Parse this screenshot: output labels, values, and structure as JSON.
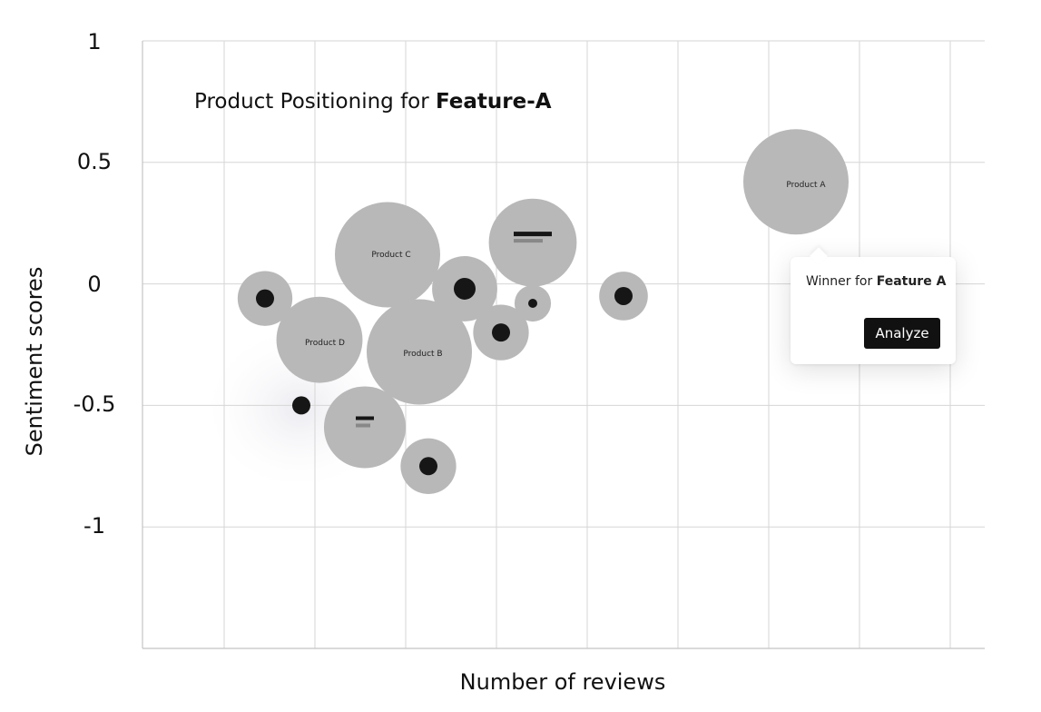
{
  "title": {
    "prefix": "Product Positioning for ",
    "emphasis": "Feature-A"
  },
  "tooltip": {
    "text_prefix": "Winner for ",
    "text_emphasis": "Feature A",
    "button_label": "Analyze"
  },
  "colors": {
    "bubble": "#b8b8b8",
    "dot": "#161616",
    "grid": "#d6d6d6",
    "axis": "#c4c4c4",
    "button": "#111111"
  },
  "chart_data": {
    "type": "scatter",
    "title": "Product Positioning for Feature-A",
    "xlabel": "Number of reviews",
    "ylabel": "Sentiment scores",
    "y_ticks": [
      "1",
      "0.5",
      "0",
      "-0.5",
      "-1"
    ],
    "ylim": [
      -1.5,
      1
    ],
    "grid": true,
    "x_tick_labels_shown": false,
    "series": [
      {
        "points": [
          {
            "label": "Product A",
            "x": 7.3,
            "y": 0.42,
            "size": 1.0
          },
          {
            "label": "Product C",
            "x": 2.8,
            "y": 0.12,
            "size": 1.0
          },
          {
            "label": "Product B",
            "x": 3.15,
            "y": -0.28,
            "size": 1.0
          },
          {
            "label": "Product D",
            "x": 2.05,
            "y": -0.23,
            "size": 0.78
          },
          {
            "label": "",
            "x": 4.4,
            "y": 0.17,
            "size": 0.8,
            "marker": "bars"
          },
          {
            "label": "",
            "x": 2.55,
            "y": -0.59,
            "size": 0.73,
            "marker": "bars"
          },
          {
            "label": "",
            "x": 3.65,
            "y": -0.02,
            "size": 0.54,
            "marker": "dot"
          },
          {
            "label": "",
            "x": 1.45,
            "y": -0.06,
            "size": 0.42,
            "marker": "dot"
          },
          {
            "label": "",
            "x": 4.05,
            "y": -0.2,
            "size": 0.43,
            "marker": "dot"
          },
          {
            "label": "",
            "x": 3.25,
            "y": -0.75,
            "size": 0.43,
            "marker": "dot"
          },
          {
            "label": "",
            "x": 5.4,
            "y": -0.05,
            "size": 0.35,
            "marker": "dot"
          },
          {
            "label": "",
            "x": 4.4,
            "y": -0.08,
            "size": 0.21,
            "marker": "dot"
          },
          {
            "label": "",
            "x": 1.85,
            "y": -0.5,
            "size": 0.0,
            "marker": "dot"
          }
        ]
      }
    ]
  }
}
